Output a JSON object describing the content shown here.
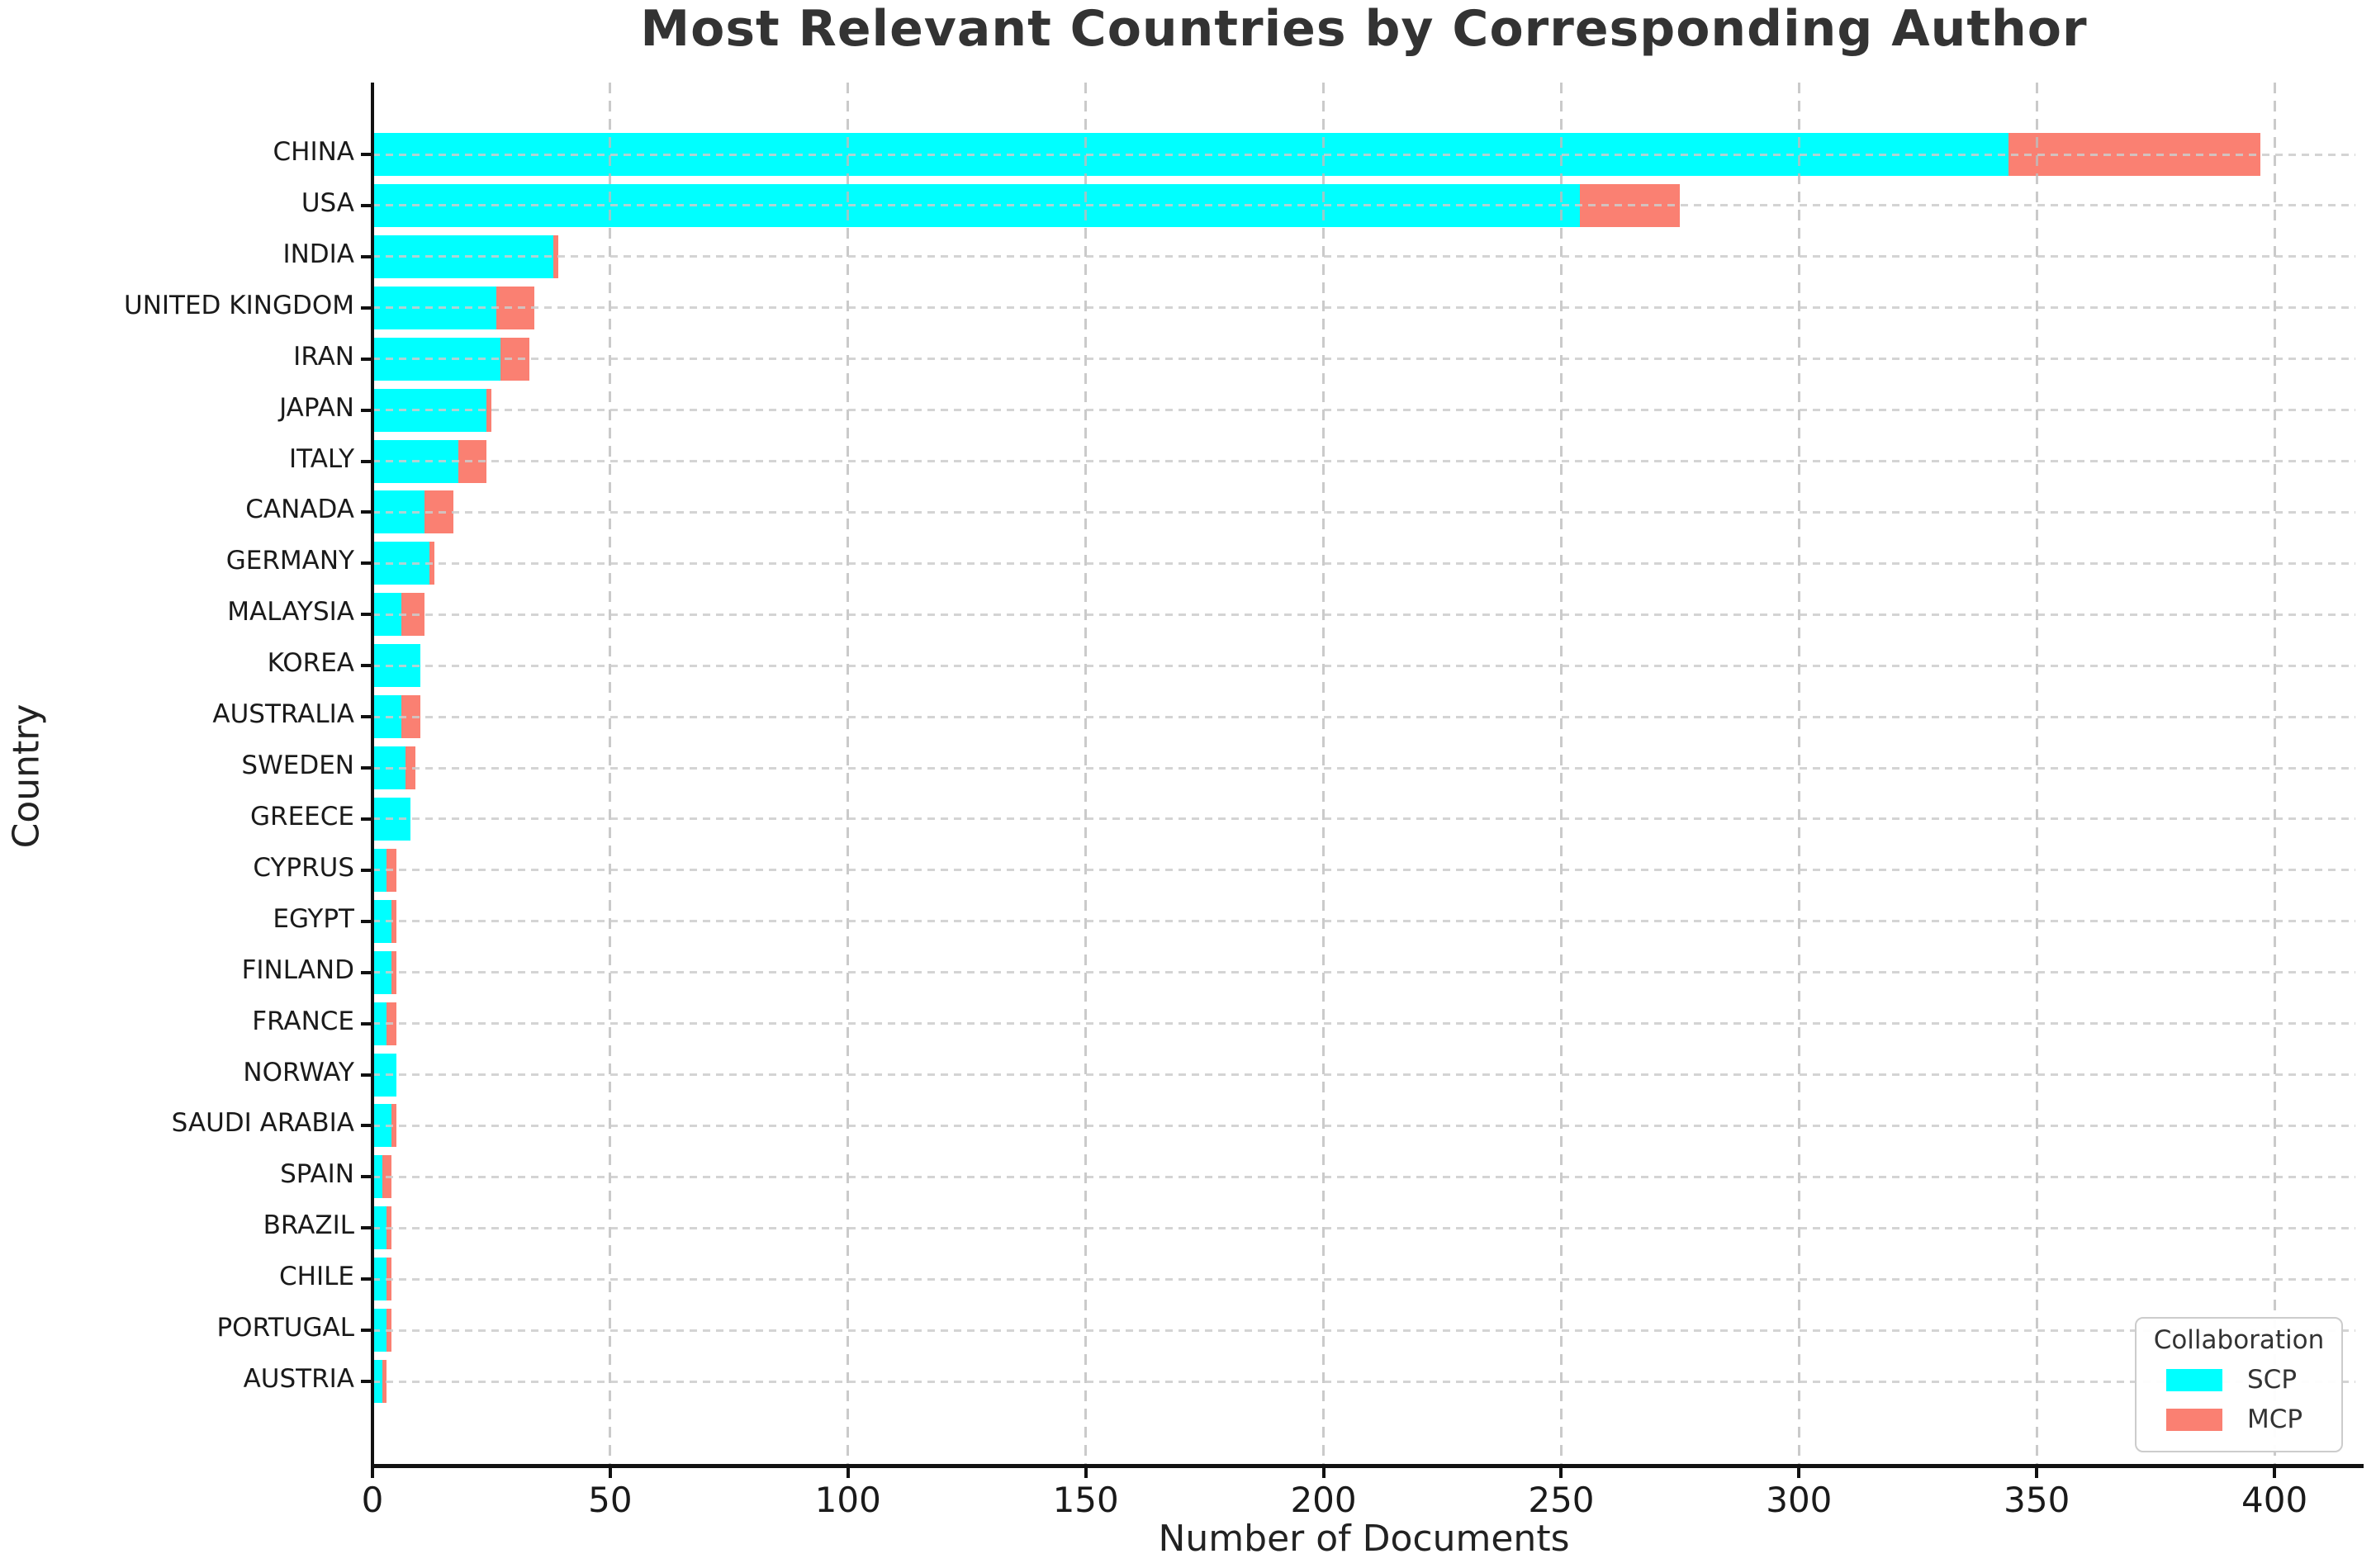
{
  "title": "Most Relevant Countries by Corresponding Author",
  "xlabel": "Number of Documents",
  "ylabel": "Country",
  "legend": {
    "title": "Collaboration",
    "items": [
      {
        "label": "SCP",
        "color": "#00FFFF"
      },
      {
        "label": "MCP",
        "color": "#FA8072"
      }
    ]
  },
  "colors": {
    "scp": "#00FFFF",
    "mcp": "#FA8072",
    "grid": "#c8c8c8",
    "spine": "#111111",
    "title_text": "#333333",
    "background": "#ffffff"
  },
  "chart_data": {
    "type": "bar",
    "orientation": "horizontal",
    "stacked": true,
    "title": "Most Relevant Countries by Corresponding Author",
    "xlabel": "Number of Documents",
    "ylabel": "Country",
    "grid": true,
    "legend_position": "lower right",
    "xlim": [
      0,
      417
    ],
    "x_ticks": [
      0,
      50,
      100,
      150,
      200,
      250,
      300,
      350,
      400
    ],
    "categories": [
      "CHINA",
      "USA",
      "INDIA",
      "UNITED KINGDOM",
      "IRAN",
      "JAPAN",
      "ITALY",
      "CANADA",
      "GERMANY",
      "MALAYSIA",
      "KOREA",
      "AUSTRALIA",
      "SWEDEN",
      "GREECE",
      "CYPRUS",
      "EGYPT",
      "FINLAND",
      "FRANCE",
      "NORWAY",
      "SAUDI ARABIA",
      "SPAIN",
      "BRAZIL",
      "CHILE",
      "PORTUGAL",
      "AUSTRIA"
    ],
    "series": [
      {
        "name": "SCP",
        "color": "#00FFFF",
        "values": [
          344,
          254,
          38,
          26,
          27,
          24,
          18,
          11,
          12,
          6,
          10,
          6,
          7,
          8,
          3,
          4,
          4,
          3,
          5,
          4,
          2,
          3,
          3,
          3,
          2
        ]
      },
      {
        "name": "MCP",
        "color": "#FA8072",
        "values": [
          53,
          21,
          1,
          8,
          6,
          1,
          6,
          6,
          1,
          5,
          0,
          4,
          2,
          0,
          2,
          1,
          1,
          2,
          0,
          1,
          2,
          1,
          1,
          1,
          1
        ]
      }
    ],
    "totals": [
      397,
      275,
      39,
      34,
      33,
      25,
      24,
      17,
      13,
      11,
      10,
      10,
      9,
      8,
      5,
      5,
      5,
      5,
      5,
      5,
      4,
      4,
      4,
      4,
      3
    ]
  }
}
